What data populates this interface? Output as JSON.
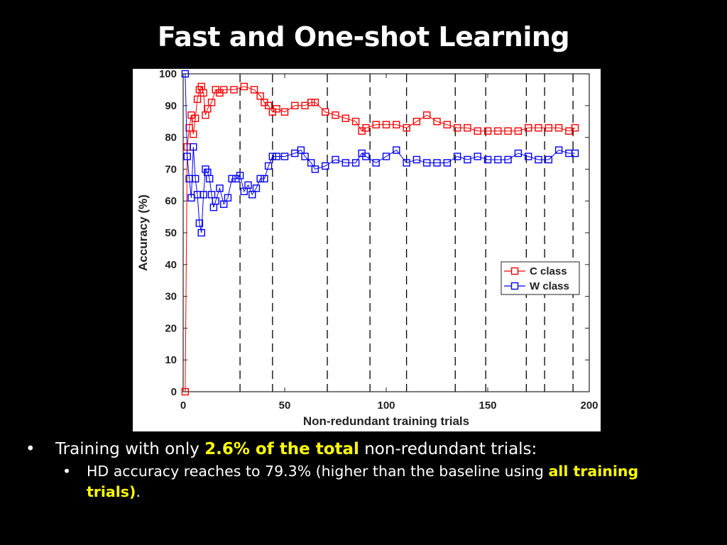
{
  "slide": {
    "title": "Fast and One-shot Learning",
    "bullets": [
      {
        "level": 1,
        "bullet": "•",
        "pre": "Training with only ",
        "highlight": "2.6% of the total",
        "post": " non-redundant trials:"
      },
      {
        "level": 2,
        "bullet": "•",
        "pre": "HD accuracy reaches to 79.3% (higher than the baseline using ",
        "highlight": "all training trials)",
        "post": "."
      }
    ],
    "highlight_color": "#ffff00"
  },
  "chart_data": {
    "type": "line",
    "title": "",
    "xlabel": "Non-redundant training trials",
    "ylabel": "Accuracy (%)",
    "xlim": [
      0,
      200
    ],
    "ylim": [
      0,
      100
    ],
    "xticks": [
      0,
      50,
      100,
      150,
      200
    ],
    "yticks": [
      0,
      10,
      20,
      30,
      40,
      50,
      60,
      70,
      80,
      90,
      100
    ],
    "grid": false,
    "legend_position": "right-middle",
    "vertical_dashed_lines_x": [
      28,
      44,
      71,
      92,
      110,
      134,
      149,
      169,
      178,
      192
    ],
    "series": [
      {
        "name": "C class",
        "color": "#ff0000",
        "marker": "square",
        "x": [
          1,
          2,
          3,
          4,
          5,
          6,
          7,
          8,
          9,
          10,
          11,
          12,
          14,
          16,
          18,
          20,
          25,
          30,
          35,
          38,
          40,
          42,
          44,
          46,
          50,
          55,
          60,
          63,
          65,
          70,
          75,
          80,
          85,
          88,
          90,
          95,
          100,
          105,
          110,
          115,
          120,
          125,
          130,
          135,
          140,
          145,
          150,
          155,
          160,
          165,
          170,
          175,
          180,
          185,
          190,
          193
        ],
        "y": [
          0,
          77,
          83,
          87,
          81,
          86,
          92,
          95,
          96,
          94,
          87,
          89,
          91,
          95,
          94,
          95,
          95,
          96,
          95,
          93,
          91,
          90,
          88,
          89,
          88,
          90,
          90,
          91,
          91,
          88,
          87,
          86,
          85,
          82,
          83,
          84,
          84,
          84,
          83,
          85,
          87,
          85,
          84,
          83,
          83,
          82,
          82,
          82,
          82,
          82,
          83,
          83,
          83,
          83,
          82,
          83
        ]
      },
      {
        "name": "W class",
        "color": "#0000ff",
        "marker": "square",
        "x": [
          1,
          2,
          3,
          4,
          5,
          6,
          7,
          8,
          9,
          10,
          11,
          12,
          13,
          14,
          15,
          16,
          18,
          20,
          22,
          24,
          26,
          28,
          30,
          32,
          34,
          36,
          38,
          40,
          42,
          44,
          46,
          50,
          55,
          58,
          60,
          63,
          65,
          70,
          75,
          80,
          85,
          88,
          90,
          95,
          100,
          105,
          110,
          115,
          120,
          125,
          130,
          135,
          140,
          145,
          150,
          155,
          160,
          165,
          170,
          175,
          180,
          185,
          190,
          193
        ],
        "y": [
          100,
          74,
          67,
          61,
          77,
          67,
          62,
          53,
          50,
          62,
          70,
          69,
          67,
          62,
          58,
          60,
          64,
          59,
          61,
          67,
          67,
          68,
          63,
          65,
          62,
          64,
          67,
          67,
          71,
          74,
          74,
          74,
          75,
          76,
          74,
          72,
          70,
          71,
          73,
          72,
          72,
          75,
          74,
          72,
          74,
          76,
          72,
          73,
          72,
          72,
          72,
          74,
          73,
          74,
          73,
          73,
          73,
          75,
          74,
          73,
          73,
          76,
          75,
          75
        ]
      }
    ]
  }
}
